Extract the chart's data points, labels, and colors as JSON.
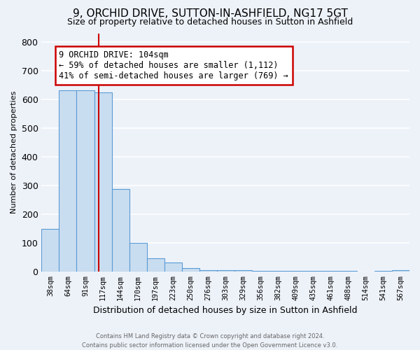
{
  "title": "9, ORCHID DRIVE, SUTTON-IN-ASHFIELD, NG17 5GT",
  "subtitle": "Size of property relative to detached houses in Sutton in Ashfield",
  "xlabel": "Distribution of detached houses by size in Sutton in Ashfield",
  "ylabel": "Number of detached properties",
  "bin_labels": [
    "38sqm",
    "64sqm",
    "91sqm",
    "117sqm",
    "144sqm",
    "170sqm",
    "197sqm",
    "223sqm",
    "250sqm",
    "276sqm",
    "303sqm",
    "329sqm",
    "356sqm",
    "382sqm",
    "409sqm",
    "435sqm",
    "461sqm",
    "488sqm",
    "514sqm",
    "541sqm",
    "567sqm"
  ],
  "bar_values": [
    148,
    632,
    632,
    625,
    287,
    100,
    45,
    32,
    12,
    5,
    5,
    5,
    1,
    1,
    1,
    1,
    1,
    1,
    0,
    1,
    5
  ],
  "bar_color": "#c9ddf0",
  "bar_edge_color": "#5b9bd5",
  "ylim": [
    0,
    830
  ],
  "yticks": [
    0,
    100,
    200,
    300,
    400,
    500,
    600,
    700,
    800
  ],
  "red_line_x": 2.77,
  "annotation_line1": "9 ORCHID DRIVE: 104sqm",
  "annotation_line2": "← 59% of detached houses are smaller (1,112)",
  "annotation_line3": "41% of semi-detached houses are larger (769) →",
  "annotation_box_color": "#ffffff",
  "annotation_box_edge": "#cc0000",
  "title_fontsize": 11,
  "subtitle_fontsize": 9,
  "ylabel_fontsize": 8,
  "xlabel_fontsize": 9,
  "footer_text": "Contains HM Land Registry data © Crown copyright and database right 2024.\nContains public sector information licensed under the Open Government Licence v3.0.",
  "background_color": "#edf2f9",
  "grid_color": "#ffffff"
}
